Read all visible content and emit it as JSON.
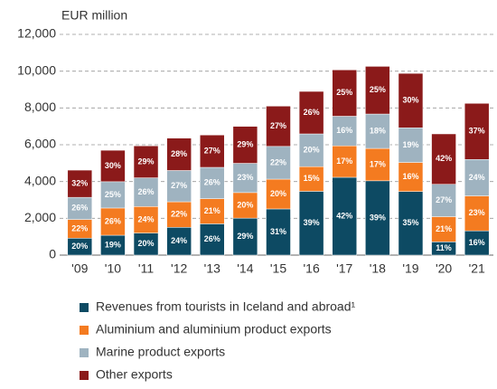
{
  "chart_data": {
    "type": "bar",
    "stacked": true,
    "y_label": "EUR million",
    "categories": [
      "'09",
      "'10",
      "'11",
      "'12",
      "'13",
      "'14",
      "'15",
      "'16",
      "'17",
      "'18",
      "'19",
      "'20",
      "'21"
    ],
    "series": [
      {
        "name": "Revenues from tourists in Iceland and abroad¹",
        "color": "#0d4a63",
        "values": [
          920,
          1080,
          1200,
          1510,
          1700,
          2010,
          2510,
          3470,
          4230,
          4040,
          3460,
          720,
          1320
        ],
        "value_labels": [
          "20%",
          "19%",
          "20%",
          "24%",
          "26%",
          "29%",
          "31%",
          "39%",
          "42%",
          "39%",
          "35%",
          "11%",
          "16%"
        ]
      },
      {
        "name": "Aluminium and aluminium product exports",
        "color": "#f47b20",
        "values": [
          1020,
          1480,
          1440,
          1390,
          1370,
          1390,
          1620,
          1340,
          1710,
          1760,
          1580,
          1370,
          1900
        ],
        "value_labels": [
          "22%",
          "26%",
          "24%",
          "22%",
          "21%",
          "20%",
          "20%",
          "15%",
          "17%",
          "17%",
          "16%",
          "21%",
          "23%"
        ]
      },
      {
        "name": "Marine product exports",
        "color": "#9fb3c0",
        "values": [
          1200,
          1430,
          1560,
          1700,
          1700,
          1590,
          1780,
          1780,
          1610,
          1870,
          1880,
          1760,
          1980
        ],
        "value_labels": [
          "26%",
          "25%",
          "26%",
          "27%",
          "26%",
          "23%",
          "22%",
          "20%",
          "16%",
          "18%",
          "19%",
          "27%",
          "24%"
        ]
      },
      {
        "name": "Other exports",
        "color": "#8b1a1a",
        "values": [
          1480,
          1710,
          1740,
          1760,
          1760,
          2010,
          2190,
          2310,
          2520,
          2590,
          2960,
          2740,
          3050
        ],
        "value_labels": [
          "32%",
          "30%",
          "29%",
          "28%",
          "27%",
          "29%",
          "27%",
          "26%",
          "25%",
          "25%",
          "30%",
          "42%",
          "37%"
        ]
      }
    ],
    "ylim": [
      0,
      12000
    ],
    "yticks": [
      0,
      {
        "value": 2000,
        "label": "2,000"
      },
      {
        "value": 4000,
        "label": "4,000"
      },
      {
        "value": 6000,
        "label": "6,000"
      },
      {
        "value": 8000,
        "label": "8,000"
      },
      {
        "value": 10000,
        "label": "10,000"
      },
      {
        "value": 12000,
        "label": "12,000"
      }
    ],
    "grid": true,
    "legend": "bottom"
  }
}
